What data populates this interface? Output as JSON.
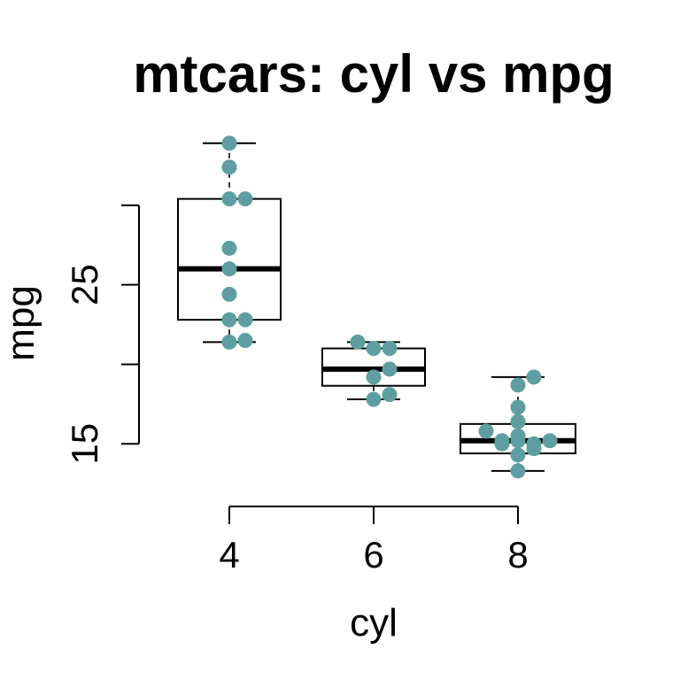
{
  "chart_data": {
    "type": "boxplot",
    "title": "mtcars: cyl vs mpg",
    "xlabel": "cyl",
    "ylabel": "mpg",
    "categories": [
      "4",
      "6",
      "8"
    ],
    "y_ticks": [
      15,
      20,
      25,
      30
    ],
    "y_tick_labels": [
      "15",
      "",
      "25",
      ""
    ],
    "ylim": [
      12.4,
      35
    ],
    "boxes": [
      {
        "category": "4",
        "min": 21.4,
        "q1": 22.8,
        "median": 26.0,
        "q3": 30.4,
        "max": 33.9
      },
      {
        "category": "6",
        "min": 17.8,
        "q1": 18.65,
        "median": 19.7,
        "q3": 21.0,
        "max": 21.4
      },
      {
        "category": "8",
        "min": 13.3,
        "q1": 14.4,
        "median": 15.2,
        "q3": 16.25,
        "max": 19.2
      }
    ],
    "points": [
      {
        "category": "4",
        "values": [
          33.9,
          32.4,
          30.4,
          30.4,
          27.3,
          26.0,
          24.4,
          22.8,
          22.8,
          21.4,
          21.5
        ],
        "jitter": [
          0,
          0,
          0,
          1,
          0,
          0,
          0,
          0,
          1,
          0,
          1
        ]
      },
      {
        "category": "6",
        "values": [
          21.4,
          21.0,
          21.0,
          19.7,
          19.2,
          18.1,
          17.8
        ],
        "jitter": [
          -1,
          0,
          1,
          1,
          0,
          1,
          0
        ]
      },
      {
        "category": "8",
        "values": [
          19.2,
          18.7,
          17.3,
          16.4,
          15.8,
          15.5,
          15.2,
          15.2,
          15.0,
          14.7,
          14.3,
          13.3,
          15.2,
          15.0
        ],
        "jitter": [
          1,
          0,
          0,
          0,
          -2,
          0,
          -1,
          0,
          1,
          1,
          0,
          0,
          2,
          -1
        ]
      }
    ],
    "point_color": "#5f9ea0",
    "line_color": "#000000",
    "grid": false
  }
}
